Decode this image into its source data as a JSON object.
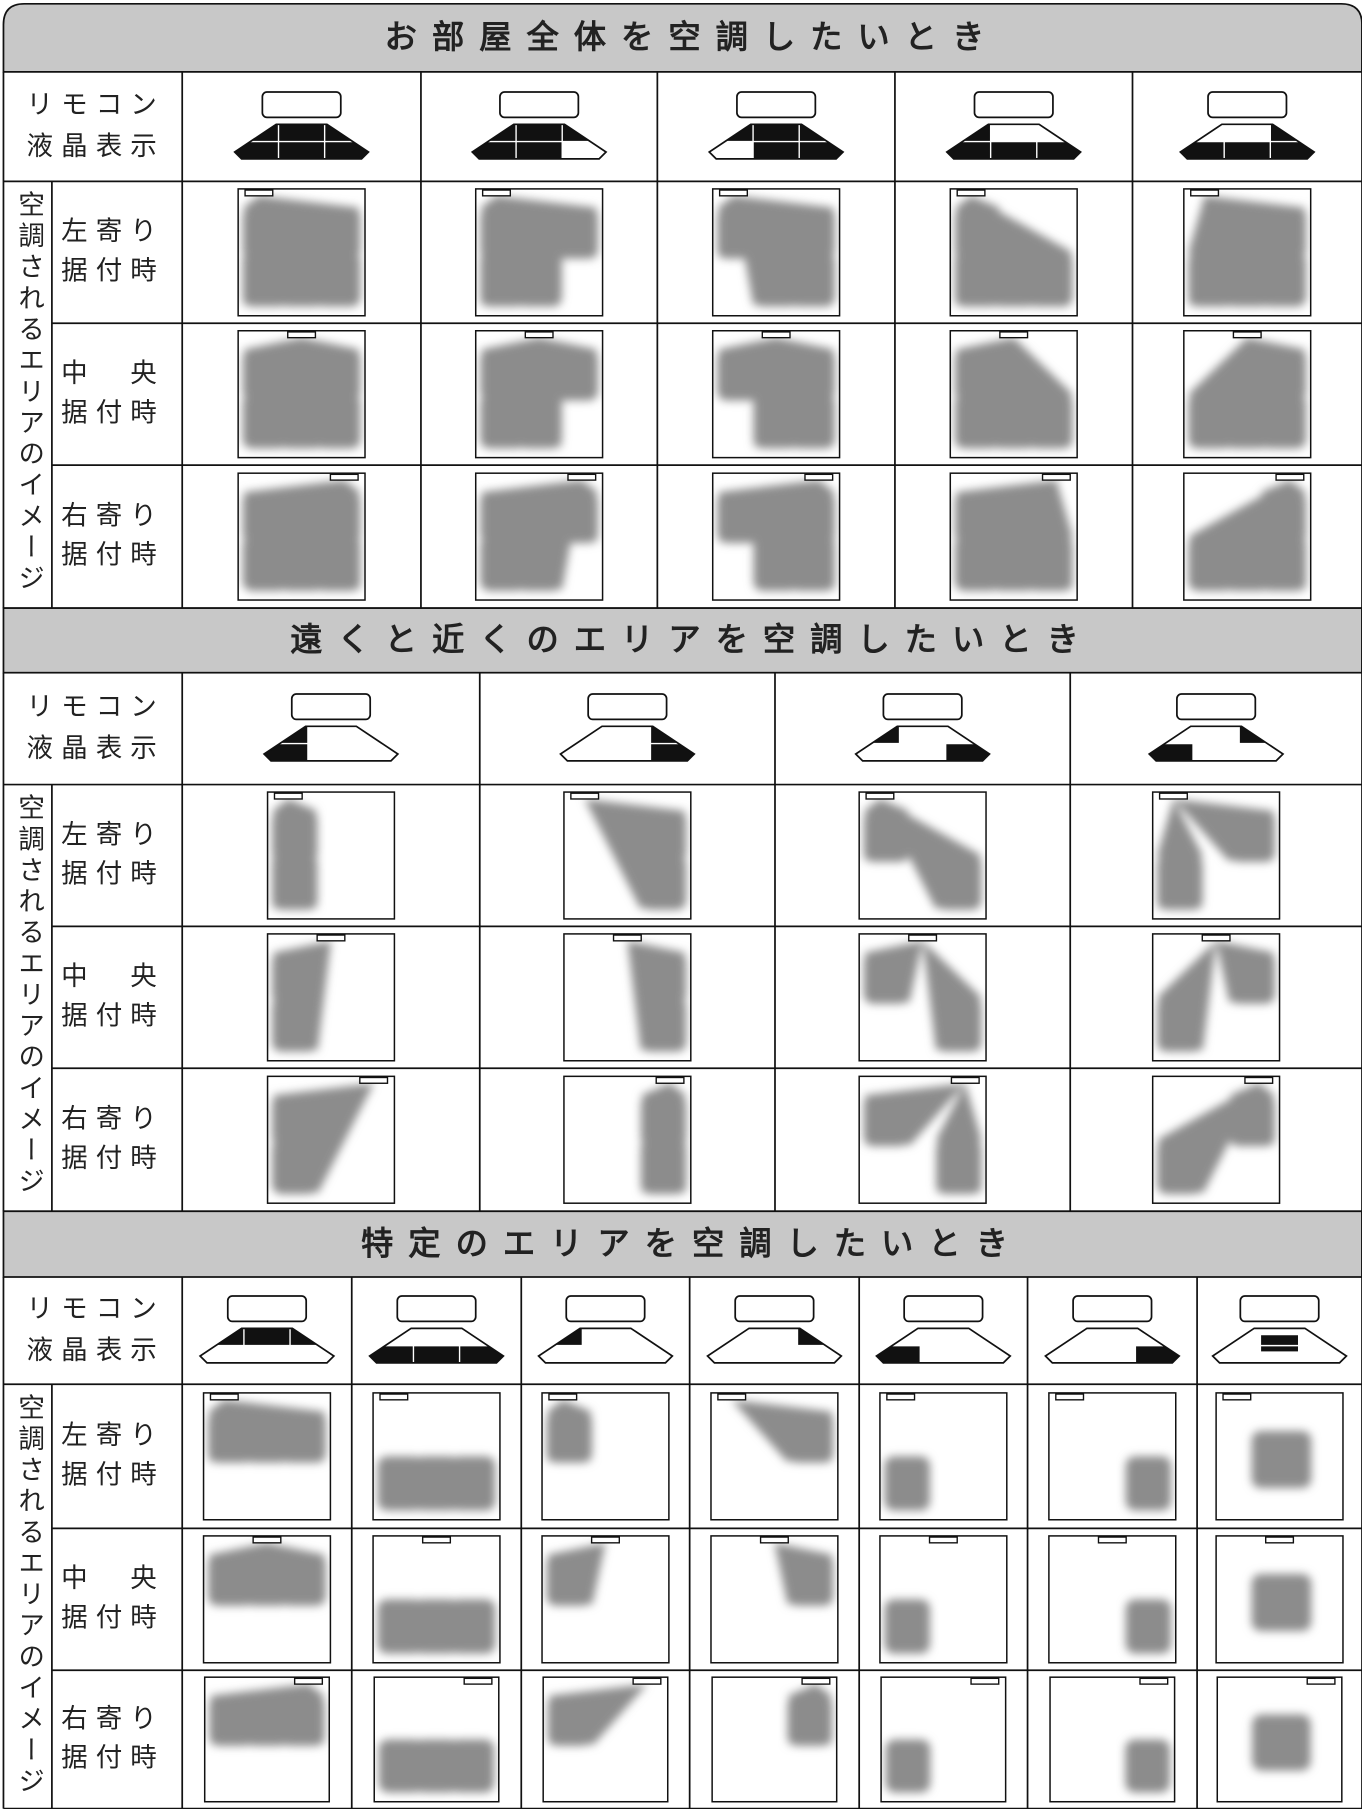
{
  "sections": [
    {
      "title": "お部屋全体を空調したいとき",
      "remote_label": [
        "リモコン",
        "液晶表示"
      ],
      "area_label": "空調されるエリアのイメージ",
      "rows": [
        [
          "左寄り",
          "据付時"
        ],
        [
          "中　央",
          "据付時"
        ],
        [
          "右寄り",
          "据付時"
        ]
      ]
    },
    {
      "title": "遠くと近くのエリアを空調したいとき",
      "remote_label": [
        "リモコン",
        "液晶表示"
      ],
      "area_label": "空調されるエリアのイメージ",
      "rows": [
        [
          "左寄り",
          "据付時"
        ],
        [
          "中　央",
          "据付時"
        ],
        [
          "右寄り",
          "据付時"
        ]
      ]
    },
    {
      "title": "特定のエリアを空調したいとき",
      "remote_label": [
        "リモコン",
        "液晶表示"
      ],
      "area_label": "空調されるエリアのイメージ",
      "rows": [
        [
          "左寄り",
          "据付時"
        ],
        [
          "中　央",
          "据付時"
        ],
        [
          "右寄り",
          "据付時"
        ]
      ]
    }
  ]
}
